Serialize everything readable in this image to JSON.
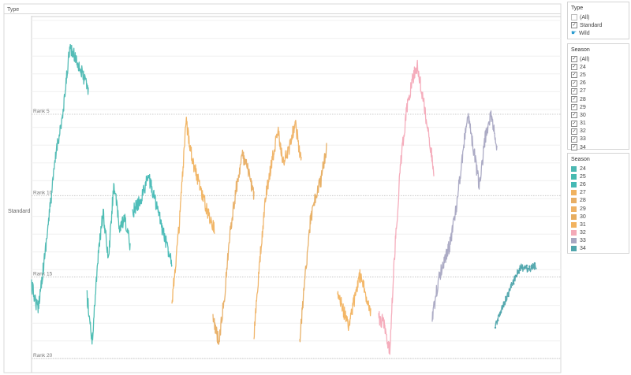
{
  "chart_data": {
    "type": "line",
    "title": "Type",
    "row_label": "Standard",
    "rank_lines": [
      {
        "label": "Rank 5",
        "rank": 5
      },
      {
        "label": "Rank 10",
        "rank": 10
      },
      {
        "label": "Rank 15",
        "rank": 15
      },
      {
        "label": "Rank 20",
        "rank": 20
      }
    ],
    "y_range": [
      0,
      20
    ],
    "y_direction": "rank 0 at top, rank 20 at bottom",
    "grid": true,
    "series": [
      {
        "name": "24",
        "color": "#4cb8b2",
        "values": [
          15.5,
          17,
          14,
          10.5,
          7,
          5,
          1,
          1.5,
          2.5,
          3.5
        ]
      },
      {
        "name": "25",
        "color": "#47bab0",
        "values": [
          16,
          19,
          14,
          11,
          14,
          9.2,
          12,
          11.5,
          13
        ]
      },
      {
        "name": "26",
        "color": "#45b9b5",
        "values": [
          11,
          10.3,
          8.8,
          10.5,
          12.5,
          14
        ]
      },
      {
        "name": "27",
        "color": "#f0b25f",
        "values": [
          16.5,
          12,
          5.5,
          8,
          9.5,
          11,
          12
        ]
      },
      {
        "name": "28",
        "color": "#e8ae64",
        "values": [
          17.5,
          19,
          16,
          12,
          9.5,
          7.5,
          8.5,
          10
        ]
      },
      {
        "name": "29",
        "color": "#efb265",
        "values": [
          18.5,
          14,
          10,
          8,
          6,
          8,
          7,
          5.5,
          8
        ]
      },
      {
        "name": "30",
        "color": "#e7ad60",
        "values": [
          19,
          15,
          11.5,
          10,
          9,
          7
        ]
      },
      {
        "name": "31",
        "color": "#f2b360",
        "values": [
          16,
          18,
          14.9,
          17
        ]
      },
      {
        "name": "32",
        "color": "#f4a9b8",
        "values": [
          17.5,
          17.8,
          19.5,
          13,
          8,
          5,
          3,
          2,
          4,
          6,
          8.5
        ]
      },
      {
        "name": "33",
        "color": "#a8a7c2",
        "values": [
          17.5,
          15.3,
          14,
          13,
          11,
          8,
          5,
          7,
          9.5,
          6.5,
          5,
          7
        ]
      },
      {
        "name": "34",
        "color": "#4fa5ac",
        "values": [
          18,
          16.7,
          15.5,
          14.4,
          14.5,
          14.3
        ]
      }
    ]
  },
  "type_filter": {
    "title": "Type",
    "items": [
      {
        "label": "(All)",
        "checked": false
      },
      {
        "label": "Standard",
        "checked": true
      },
      {
        "label": "Wild",
        "checked": false,
        "hover": true
      }
    ]
  },
  "season_filter": {
    "title": "Season",
    "items": [
      {
        "label": "(All)",
        "checked": true
      },
      {
        "label": "24",
        "checked": true
      },
      {
        "label": "25",
        "checked": true
      },
      {
        "label": "26",
        "checked": true
      },
      {
        "label": "27",
        "checked": true
      },
      {
        "label": "28",
        "checked": true
      },
      {
        "label": "29",
        "checked": true
      },
      {
        "label": "30",
        "checked": true
      },
      {
        "label": "31",
        "checked": true
      },
      {
        "label": "32",
        "checked": true
      },
      {
        "label": "33",
        "checked": true
      },
      {
        "label": "34",
        "checked": true
      }
    ]
  },
  "season_legend": {
    "title": "Season",
    "items": [
      {
        "label": "24",
        "color": "#4cb8b2"
      },
      {
        "label": "25",
        "color": "#47bab0"
      },
      {
        "label": "26",
        "color": "#45b9b5"
      },
      {
        "label": "27",
        "color": "#f0b25f"
      },
      {
        "label": "28",
        "color": "#e8ae64"
      },
      {
        "label": "29",
        "color": "#efb265"
      },
      {
        "label": "30",
        "color": "#e7ad60"
      },
      {
        "label": "31",
        "color": "#f2b360"
      },
      {
        "label": "32",
        "color": "#f4a9b8"
      },
      {
        "label": "33",
        "color": "#a8a7c2"
      },
      {
        "label": "34",
        "color": "#4fa5ac"
      }
    ]
  }
}
